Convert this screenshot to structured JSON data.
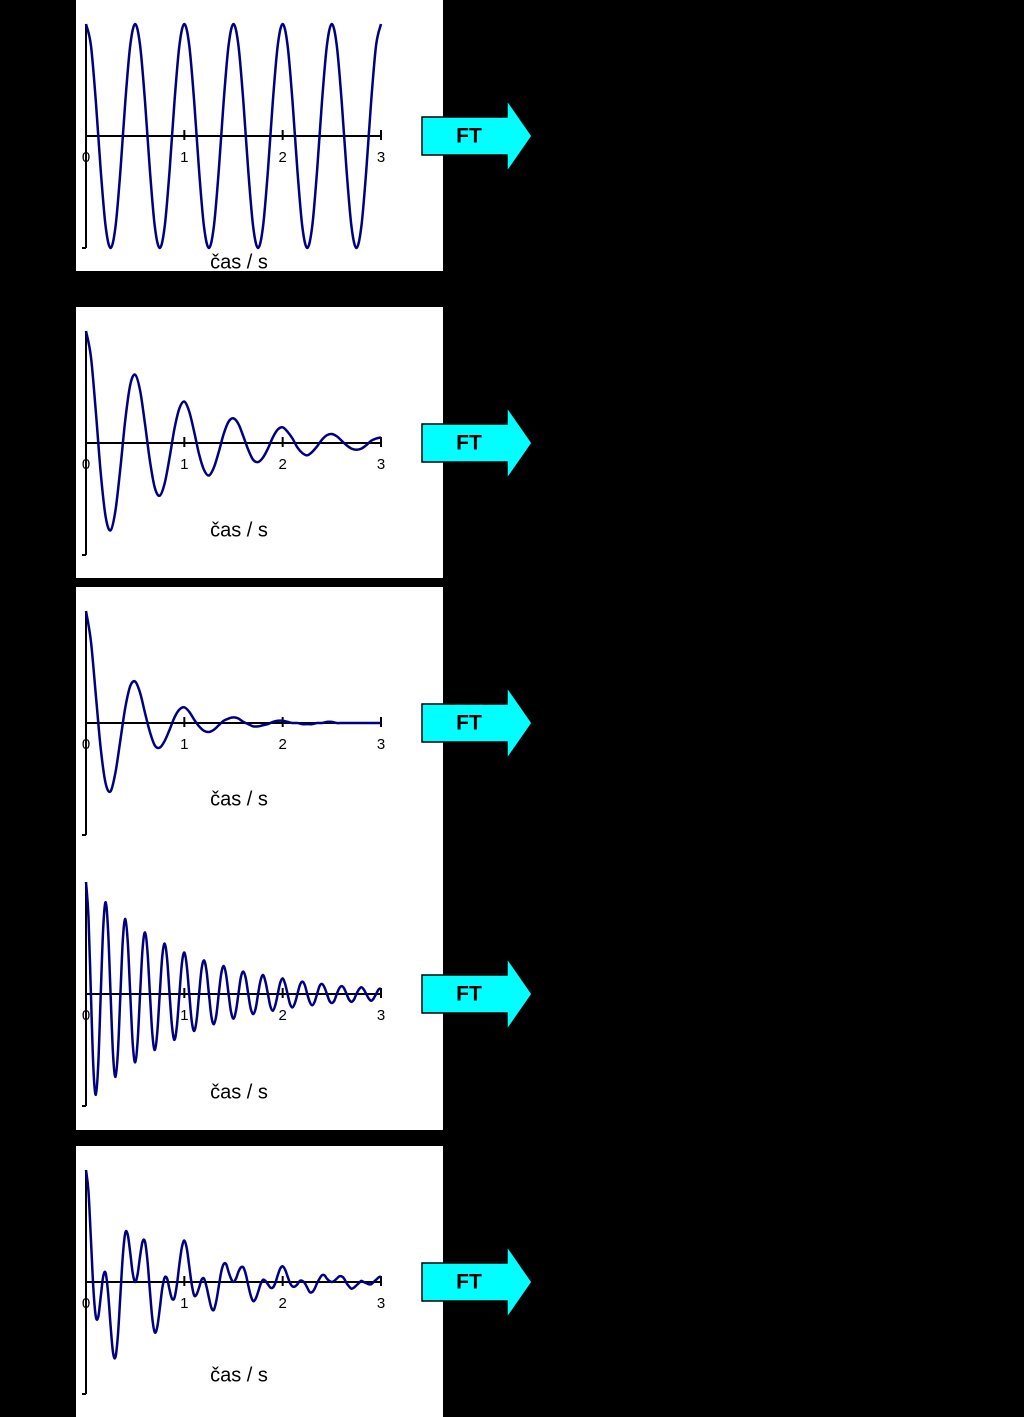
{
  "chart_data": [
    {
      "type": "line",
      "xlim": [
        0,
        3
      ],
      "ylim": [
        -1,
        1
      ],
      "xticks": [
        0,
        1,
        2,
        3
      ],
      "xlabel": "čas / s",
      "annotation": "FT",
      "x": [
        0,
        0.05,
        0.1,
        0.15,
        0.2,
        0.25,
        0.3,
        0.35,
        0.4,
        0.45,
        0.5,
        0.55,
        0.6,
        0.65,
        0.7,
        0.75,
        0.8,
        0.85,
        0.9,
        0.95,
        1,
        1.05,
        1.1,
        1.15,
        1.2,
        1.25,
        1.3,
        1.35,
        1.4,
        1.45,
        1.5,
        1.55,
        1.6,
        1.65,
        1.7,
        1.75,
        1.8,
        1.85,
        1.9,
        1.95,
        2,
        2.05,
        2.1,
        2.15,
        2.2,
        2.25,
        2.3,
        2.35,
        2.4,
        2.45,
        2.5,
        2.55,
        2.6,
        2.65,
        2.7,
        2.75,
        2.8,
        2.85,
        2.9,
        2.95,
        3
      ],
      "series": [
        {
          "color": "#000080",
          "values": [
            1,
            0.81,
            0.31,
            -0.31,
            -0.81,
            -1,
            -0.81,
            -0.31,
            0.31,
            0.81,
            1,
            0.81,
            0.31,
            -0.31,
            -0.81,
            -1,
            -0.81,
            -0.31,
            0.31,
            0.81,
            1,
            0.81,
            0.31,
            -0.31,
            -0.81,
            -1,
            -0.81,
            -0.31,
            0.31,
            0.81,
            1,
            0.81,
            0.31,
            -0.31,
            -0.81,
            -1,
            -0.81,
            -0.31,
            0.31,
            0.81,
            1,
            0.81,
            0.31,
            -0.31,
            -0.81,
            -1,
            -0.81,
            -0.31,
            0.31,
            0.81,
            1,
            0.81,
            0.31,
            -0.31,
            -0.81,
            -1,
            -0.81,
            -0.31,
            0.31,
            0.81,
            1
          ]
        }
      ]
    },
    {
      "type": "line",
      "xlim": [
        0,
        3
      ],
      "ylim": [
        -1,
        1
      ],
      "xticks": [
        0,
        1,
        2,
        3
      ],
      "xlabel": "čas / s",
      "annotation": "FT",
      "x": [
        0,
        0.05,
        0.1,
        0.15,
        0.2,
        0.25,
        0.3,
        0.35,
        0.4,
        0.45,
        0.5,
        0.55,
        0.6,
        0.65,
        0.7,
        0.75,
        0.8,
        0.85,
        0.9,
        0.95,
        1,
        1.05,
        1.1,
        1.15,
        1.2,
        1.25,
        1.3,
        1.35,
        1.4,
        1.45,
        1.5,
        1.55,
        1.6,
        1.65,
        1.7,
        1.75,
        1.8,
        1.85,
        1.9,
        1.95,
        2,
        2.05,
        2.1,
        2.15,
        2.2,
        2.25,
        2.3,
        2.35,
        2.4,
        2.45,
        2.5,
        2.55,
        2.6,
        2.65,
        2.7,
        2.75,
        2.8,
        2.85,
        2.9,
        2.95,
        3
      ],
      "series": [
        {
          "color": "#000080",
          "values": [
            1,
            0.77,
            0.28,
            -0.27,
            -0.66,
            -0.78,
            -0.6,
            -0.22,
            0.21,
            0.52,
            0.61,
            0.47,
            0.17,
            -0.16,
            -0.4,
            -0.47,
            -0.36,
            -0.13,
            0.13,
            0.31,
            0.37,
            0.28,
            0.1,
            -0.1,
            -0.24,
            -0.29,
            -0.22,
            -0.08,
            0.08,
            0.19,
            0.22,
            0.17,
            0.06,
            -0.06,
            -0.15,
            -0.17,
            -0.13,
            -0.05,
            0.05,
            0.12,
            0.14,
            0.1,
            0.04,
            -0.04,
            -0.09,
            -0.11,
            -0.08,
            -0.03,
            0.03,
            0.07,
            0.08,
            0.06,
            0.02,
            -0.02,
            -0.05,
            -0.06,
            -0.05,
            -0.02,
            0.02,
            0.04,
            0.05
          ]
        }
      ]
    },
    {
      "type": "line",
      "xlim": [
        0,
        3
      ],
      "ylim": [
        -1,
        1
      ],
      "xticks": [
        0,
        1,
        2,
        3
      ],
      "xlabel": "čas / s",
      "annotation": "FT",
      "x": [
        0,
        0.05,
        0.1,
        0.15,
        0.2,
        0.25,
        0.3,
        0.35,
        0.4,
        0.45,
        0.5,
        0.55,
        0.6,
        0.65,
        0.7,
        0.75,
        0.8,
        0.85,
        0.9,
        0.95,
        1,
        1.05,
        1.1,
        1.15,
        1.2,
        1.25,
        1.3,
        1.35,
        1.4,
        1.45,
        1.5,
        1.55,
        1.6,
        1.65,
        1.7,
        1.75,
        1.8,
        1.85,
        1.9,
        1.95,
        2,
        2.05,
        2.1,
        2.15,
        2.2,
        2.25,
        2.3,
        2.35,
        2.4,
        2.45,
        2.5,
        2.55,
        2.6,
        2.65,
        2.7,
        2.75,
        2.8,
        2.85,
        2.9,
        2.95,
        3
      ],
      "series": [
        {
          "color": "#000080",
          "values": [
            1,
            0.73,
            0.25,
            -0.23,
            -0.54,
            -0.61,
            -0.44,
            -0.15,
            0.14,
            0.33,
            0.37,
            0.27,
            0.09,
            -0.08,
            -0.2,
            -0.22,
            -0.16,
            -0.06,
            0.05,
            0.12,
            0.14,
            0.1,
            0.03,
            -0.03,
            -0.07,
            -0.08,
            -0.06,
            -0.02,
            0.02,
            0.04,
            0.05,
            0.04,
            0.01,
            -0.01,
            -0.03,
            -0.03,
            -0.02,
            -0.01,
            0.01,
            0.02,
            0.02,
            0.01,
            0,
            0,
            -0.01,
            -0.01,
            -0.01,
            0,
            0,
            0.01,
            0.01,
            0,
            0,
            0,
            0,
            0,
            0,
            0,
            0,
            0,
            0
          ]
        }
      ]
    },
    {
      "type": "line",
      "xlim": [
        0,
        3
      ],
      "ylim": [
        -1,
        1
      ],
      "xticks": [
        0,
        1,
        2,
        3
      ],
      "xlabel": "čas / s",
      "annotation": "FT",
      "x": [
        0,
        0.025,
        0.05,
        0.075,
        0.1,
        0.125,
        0.15,
        0.175,
        0.2,
        0.225,
        0.25,
        0.275,
        0.3,
        0.325,
        0.35,
        0.375,
        0.4,
        0.425,
        0.45,
        0.475,
        0.5,
        0.525,
        0.55,
        0.575,
        0.6,
        0.625,
        0.65,
        0.675,
        0.7,
        0.725,
        0.75,
        0.775,
        0.8,
        0.825,
        0.85,
        0.875,
        0.9,
        0.925,
        0.95,
        0.975,
        1,
        1.025,
        1.05,
        1.075,
        1.1,
        1.125,
        1.15,
        1.175,
        1.2,
        1.225,
        1.25,
        1.275,
        1.3,
        1.325,
        1.35,
        1.375,
        1.4,
        1.425,
        1.45,
        1.475,
        1.5,
        1.525,
        1.55,
        1.575,
        1.6,
        1.625,
        1.65,
        1.675,
        1.7,
        1.725,
        1.75,
        1.775,
        1.8,
        1.825,
        1.85,
        1.875,
        1.9,
        1.925,
        1.95,
        1.975,
        2,
        2.025,
        2.05,
        2.075,
        2.1,
        2.125,
        2.15,
        2.175,
        2.2,
        2.225,
        2.25,
        2.275,
        2.3,
        2.325,
        2.35,
        2.375,
        2.4,
        2.425,
        2.45,
        2.475,
        2.5,
        2.525,
        2.55,
        2.575,
        2.6,
        2.625,
        2.65,
        2.675,
        2.7,
        2.725,
        2.75,
        2.775,
        2.8,
        2.825,
        2.85,
        2.875,
        2.9,
        2.925,
        2.95,
        2.975,
        3
      ],
      "series": [
        {
          "color": "#000080",
          "values": [
            1,
            0.69,
            0,
            -0.66,
            -0.9,
            -0.62,
            0,
            0.59,
            0.82,
            0.56,
            0,
            -0.54,
            -0.74,
            -0.51,
            0,
            0.49,
            0.67,
            0.46,
            0,
            -0.44,
            -0.61,
            -0.42,
            0,
            0.4,
            0.55,
            0.38,
            0,
            -0.36,
            -0.5,
            -0.34,
            0,
            0.33,
            0.45,
            0.31,
            0,
            -0.29,
            -0.41,
            -0.28,
            0,
            0.27,
            0.37,
            0.25,
            0,
            -0.24,
            -0.33,
            -0.23,
            0,
            0.22,
            0.3,
            0.21,
            0,
            -0.2,
            -0.27,
            -0.19,
            0,
            0.18,
            0.25,
            0.17,
            0,
            -0.16,
            -0.22,
            -0.15,
            0,
            0.15,
            0.2,
            0.14,
            0,
            -0.13,
            -0.18,
            -0.13,
            0,
            0.12,
            0.17,
            0.11,
            0,
            -0.11,
            -0.15,
            -0.1,
            0,
            0.1,
            0.14,
            0.09,
            0,
            -0.09,
            -0.12,
            -0.08,
            0,
            0.08,
            0.11,
            0.08,
            0,
            -0.07,
            -0.1,
            -0.07,
            0,
            0.07,
            0.09,
            0.06,
            0,
            -0.06,
            -0.08,
            -0.06,
            0,
            0.05,
            0.07,
            0.05,
            0,
            -0.05,
            -0.07,
            -0.05,
            0,
            0.04,
            0.06,
            0.04,
            0,
            -0.04,
            -0.06,
            -0.04,
            0,
            0.04,
            0.05
          ]
        }
      ]
    },
    {
      "type": "line",
      "xlim": [
        0,
        3
      ],
      "ylim": [
        -1,
        1
      ],
      "xticks": [
        0,
        1,
        2,
        3
      ],
      "xlabel": "čas / s",
      "annotation": "FT",
      "x": [
        0,
        0.025,
        0.05,
        0.075,
        0.1,
        0.125,
        0.15,
        0.175,
        0.2,
        0.225,
        0.25,
        0.275,
        0.3,
        0.325,
        0.35,
        0.375,
        0.4,
        0.425,
        0.45,
        0.475,
        0.5,
        0.525,
        0.55,
        0.575,
        0.6,
        0.625,
        0.65,
        0.675,
        0.7,
        0.725,
        0.75,
        0.775,
        0.8,
        0.825,
        0.85,
        0.875,
        0.9,
        0.925,
        0.95,
        0.975,
        1,
        1.025,
        1.05,
        1.075,
        1.1,
        1.125,
        1.15,
        1.175,
        1.2,
        1.225,
        1.25,
        1.275,
        1.3,
        1.325,
        1.35,
        1.375,
        1.4,
        1.425,
        1.45,
        1.475,
        1.5,
        1.525,
        1.55,
        1.575,
        1.6,
        1.625,
        1.65,
        1.675,
        1.7,
        1.725,
        1.75,
        1.775,
        1.8,
        1.825,
        1.85,
        1.875,
        1.9,
        1.925,
        1.95,
        1.975,
        2,
        2.025,
        2.05,
        2.075,
        2.1,
        2.125,
        2.15,
        2.175,
        2.2,
        2.225,
        2.25,
        2.275,
        2.3,
        2.325,
        2.35,
        2.375,
        2.4,
        2.425,
        2.45,
        2.475,
        2.5,
        2.525,
        2.55,
        2.575,
        2.6,
        2.625,
        2.65,
        2.675,
        2.7,
        2.725,
        2.75,
        2.775,
        2.8,
        2.825,
        2.85,
        2.875,
        2.9,
        2.925,
        2.95,
        2.975,
        3
      ],
      "series": [
        {
          "color": "#000080",
          "values": [
            1,
            0.81,
            0.38,
            -0.06,
            -0.31,
            -0.31,
            -0.13,
            0.05,
            0.08,
            -0.1,
            -0.39,
            -0.63,
            -0.67,
            -0.47,
            -0.11,
            0.24,
            0.44,
            0.42,
            0.26,
            0.08,
            0,
            0.07,
            0.23,
            0.36,
            0.36,
            0.19,
            -0.08,
            -0.33,
            -0.45,
            -0.4,
            -0.24,
            -0.06,
            0.04,
            0.03,
            -0.07,
            -0.15,
            -0.14,
            -0.02,
            0.16,
            0.31,
            0.37,
            0.3,
            0.14,
            -0.02,
            -0.12,
            -0.11,
            -0.05,
            0.02,
            0.03,
            -0.04,
            -0.14,
            -0.23,
            -0.25,
            -0.17,
            -0.04,
            0.09,
            0.16,
            0.16,
            0.09,
            0.03,
            0,
            0.03,
            0.09,
            0.13,
            0.13,
            0.07,
            -0.03,
            -0.12,
            -0.17,
            -0.15,
            -0.09,
            -0.02,
            0.02,
            0.01,
            -0.02,
            -0.05,
            -0.05,
            -0.01,
            0.06,
            0.12,
            0.14,
            0.11,
            0.05,
            -0.01,
            -0.04,
            -0.04,
            -0.02,
            0.01,
            0.01,
            -0.01,
            -0.05,
            -0.09,
            -0.09,
            -0.06,
            -0.01,
            0.03,
            0.06,
            0.06,
            0.03,
            0.01,
            0,
            0.01,
            0.03,
            0.05,
            0.05,
            0.03,
            -0.01,
            -0.04,
            -0.06,
            -0.05,
            -0.03,
            -0.01,
            0.01,
            0,
            -0.01,
            -0.02,
            -0.02,
            0,
            0.02,
            0.04,
            0.05
          ]
        }
      ]
    }
  ]
}
